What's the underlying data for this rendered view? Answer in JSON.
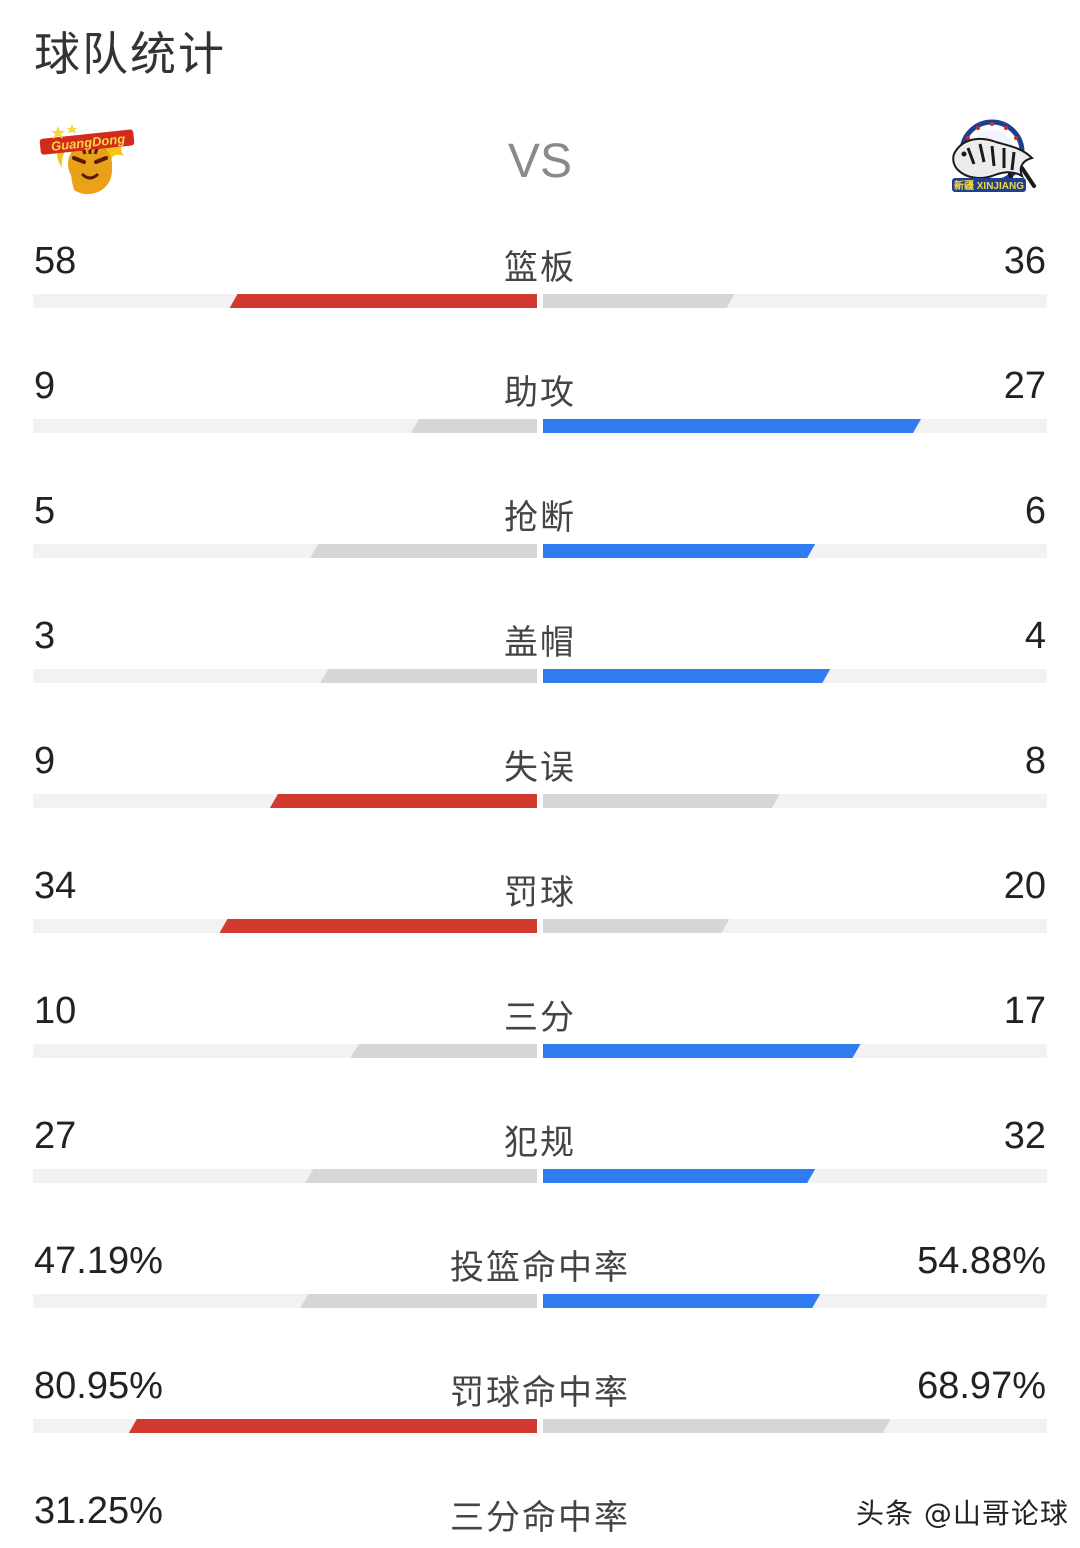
{
  "header": {
    "title": "球队统计"
  },
  "teams": {
    "vs_label": "VS",
    "home": {
      "logo_icon": "guangdong-tiger-logo-icon",
      "logo_text": "GuangDong"
    },
    "away": {
      "logo_icon": "xinjiang-tiger-logo-icon",
      "logo_text": "新疆 XINJIANG"
    }
  },
  "colors": {
    "home_win": "#d23a2f",
    "away_win": "#2f7cf0",
    "lose": "#d6d6d6",
    "track": "#f2f2f2"
  },
  "stats": [
    {
      "label": "篮板",
      "home": "58",
      "away": "36",
      "home_pct": 0.61,
      "away_pct": 0.38,
      "leader": "home"
    },
    {
      "label": "助攻",
      "home": "9",
      "away": "27",
      "home_pct": 0.25,
      "away_pct": 0.75,
      "leader": "away"
    },
    {
      "label": "抢断",
      "home": "5",
      "away": "6",
      "home_pct": 0.45,
      "away_pct": 0.54,
      "leader": "away"
    },
    {
      "label": "盖帽",
      "home": "3",
      "away": "4",
      "home_pct": 0.43,
      "away_pct": 0.57,
      "leader": "away"
    },
    {
      "label": "失误",
      "home": "9",
      "away": "8",
      "home_pct": 0.53,
      "away_pct": 0.47,
      "leader": "home"
    },
    {
      "label": "罚球",
      "home": "34",
      "away": "20",
      "home_pct": 0.63,
      "away_pct": 0.37,
      "leader": "home"
    },
    {
      "label": "三分",
      "home": "10",
      "away": "17",
      "home_pct": 0.37,
      "away_pct": 0.63,
      "leader": "away"
    },
    {
      "label": "犯规",
      "home": "27",
      "away": "32",
      "home_pct": 0.46,
      "away_pct": 0.54,
      "leader": "away"
    },
    {
      "label": "投篮命中率",
      "home": "47.19%",
      "away": "54.88%",
      "home_pct": 0.47,
      "away_pct": 0.55,
      "leader": "away"
    },
    {
      "label": "罚球命中率",
      "home": "80.95%",
      "away": "68.97%",
      "home_pct": 0.81,
      "away_pct": 0.69,
      "leader": "home"
    },
    {
      "label": "三分命中率",
      "home": "31.25%",
      "away": "",
      "home_pct": 0,
      "away_pct": 0,
      "leader": "none"
    }
  ],
  "watermark": "头条 @山哥论球"
}
